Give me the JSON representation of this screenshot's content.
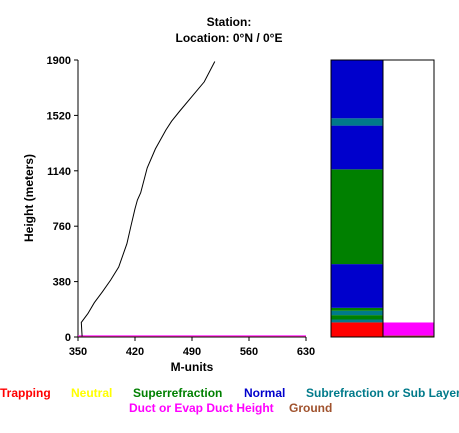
{
  "header": {
    "station_line": "Station:",
    "location_line": "Location:   0°N /   0°E"
  },
  "chart_data": {
    "type": "line",
    "xlabel": "M-units",
    "ylabel": "Height (meters)",
    "xlim": [
      350,
      630
    ],
    "ylim": [
      0,
      1900
    ],
    "x_ticks": [
      "350",
      "420",
      "490",
      "560",
      "630"
    ],
    "y_ticks": [
      "0",
      "380",
      "760",
      "1140",
      "1520",
      "1900"
    ],
    "x_tick_values": [
      350,
      420,
      490,
      560,
      630
    ],
    "y_tick_values": [
      0,
      380,
      760,
      1140,
      1520,
      1900
    ],
    "series": [
      {
        "color": "#000000",
        "x": [
          355,
          354,
          362,
          370,
          380,
          390,
          400,
          410,
          415,
          420,
          423,
          427,
          435,
          445,
          458,
          465,
          475,
          490,
          505,
          518
        ],
        "y": [
          5,
          100,
          160,
          235,
          310,
          390,
          480,
          640,
          760,
          880,
          940,
          990,
          1160,
          1290,
          1420,
          1480,
          1550,
          1650,
          1750,
          1890
        ]
      }
    ],
    "surface_lines": [
      {
        "name": "ground",
        "color": "#8B4513",
        "y": 5
      },
      {
        "name": "duct",
        "color": "#FF00FF",
        "y": 8
      }
    ],
    "profile_bars": {
      "left_column": [
        {
          "category": "Trapping",
          "from": 0,
          "to": 100
        },
        {
          "category": "Subrefraction or Sub Layer",
          "from": 100,
          "to": 120
        },
        {
          "category": "Superrefraction",
          "from": 120,
          "to": 150
        },
        {
          "category": "Subrefraction or Sub Layer",
          "from": 150,
          "to": 180
        },
        {
          "category": "Superrefraction",
          "from": 180,
          "to": 200
        },
        {
          "category": "Normal",
          "from": 200,
          "to": 500
        },
        {
          "category": "Superrefraction",
          "from": 500,
          "to": 1150
        },
        {
          "category": "Normal",
          "from": 1150,
          "to": 1450
        },
        {
          "category": "Subrefraction or Sub Layer",
          "from": 1450,
          "to": 1500
        },
        {
          "category": "Normal",
          "from": 1500,
          "to": 1900
        }
      ],
      "right_column": [
        {
          "category": "Ground",
          "from": 0,
          "to": 10
        },
        {
          "category": "Duct or Evap Duct Height",
          "from": 10,
          "to": 100
        },
        {
          "category": "None",
          "from": 100,
          "to": 1900
        }
      ]
    },
    "legend": [
      {
        "label": "Trapping",
        "color": "#FF0000"
      },
      {
        "label": "Neutral",
        "color": "#FFFF00"
      },
      {
        "label": "Superrefraction",
        "color": "#008000"
      },
      {
        "label": "Normal",
        "color": "#0000CC"
      },
      {
        "label": "Subrefraction or Sub Layer",
        "color": "#007A8A"
      },
      {
        "label": "Duct or Evap Duct Height",
        "color": "#FF00FF"
      },
      {
        "label": "Ground",
        "color": "#A0522D"
      }
    ]
  }
}
